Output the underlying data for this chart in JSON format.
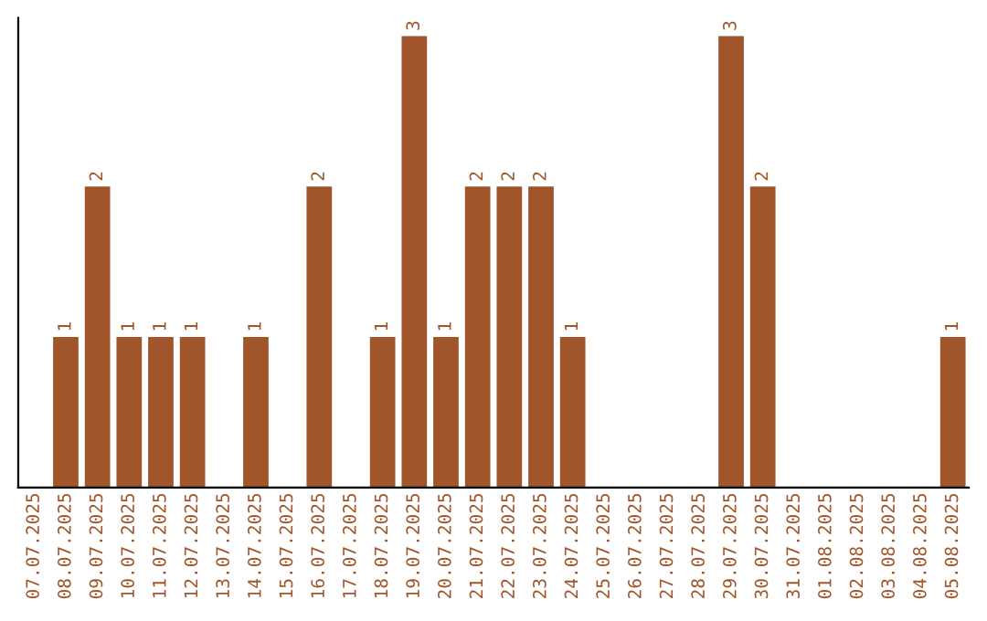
{
  "chart_data": {
    "type": "bar",
    "categories": [
      "07.07.2025",
      "08.07.2025",
      "09.07.2025",
      "10.07.2025",
      "11.07.2025",
      "12.07.2025",
      "13.07.2025",
      "14.07.2025",
      "15.07.2025",
      "16.07.2025",
      "17.07.2025",
      "18.07.2025",
      "19.07.2025",
      "20.07.2025",
      "21.07.2025",
      "22.07.2025",
      "23.07.2025",
      "24.07.2025",
      "25.07.2025",
      "26.07.2025",
      "27.07.2025",
      "28.07.2025",
      "29.07.2025",
      "30.07.2025",
      "31.07.2025",
      "01.08.2025",
      "02.08.2025",
      "03.08.2025",
      "04.08.2025",
      "05.08.2025"
    ],
    "values": [
      0,
      1,
      2,
      1,
      1,
      1,
      0,
      1,
      0,
      2,
      0,
      1,
      3,
      1,
      2,
      2,
      2,
      1,
      0,
      0,
      0,
      0,
      3,
      2,
      0,
      0,
      0,
      0,
      0,
      1
    ],
    "value_labels": [
      null,
      "1",
      "2",
      "1",
      "1",
      "1",
      null,
      "1",
      null,
      "2",
      null,
      "1",
      "3",
      "1",
      "2",
      "2",
      "2",
      "1",
      null,
      null,
      null,
      null,
      "3",
      "2",
      null,
      null,
      null,
      null,
      null,
      "1"
    ],
    "color": "#a0562a",
    "tick_labels": "x",
    "grid": false,
    "legend": false
  }
}
